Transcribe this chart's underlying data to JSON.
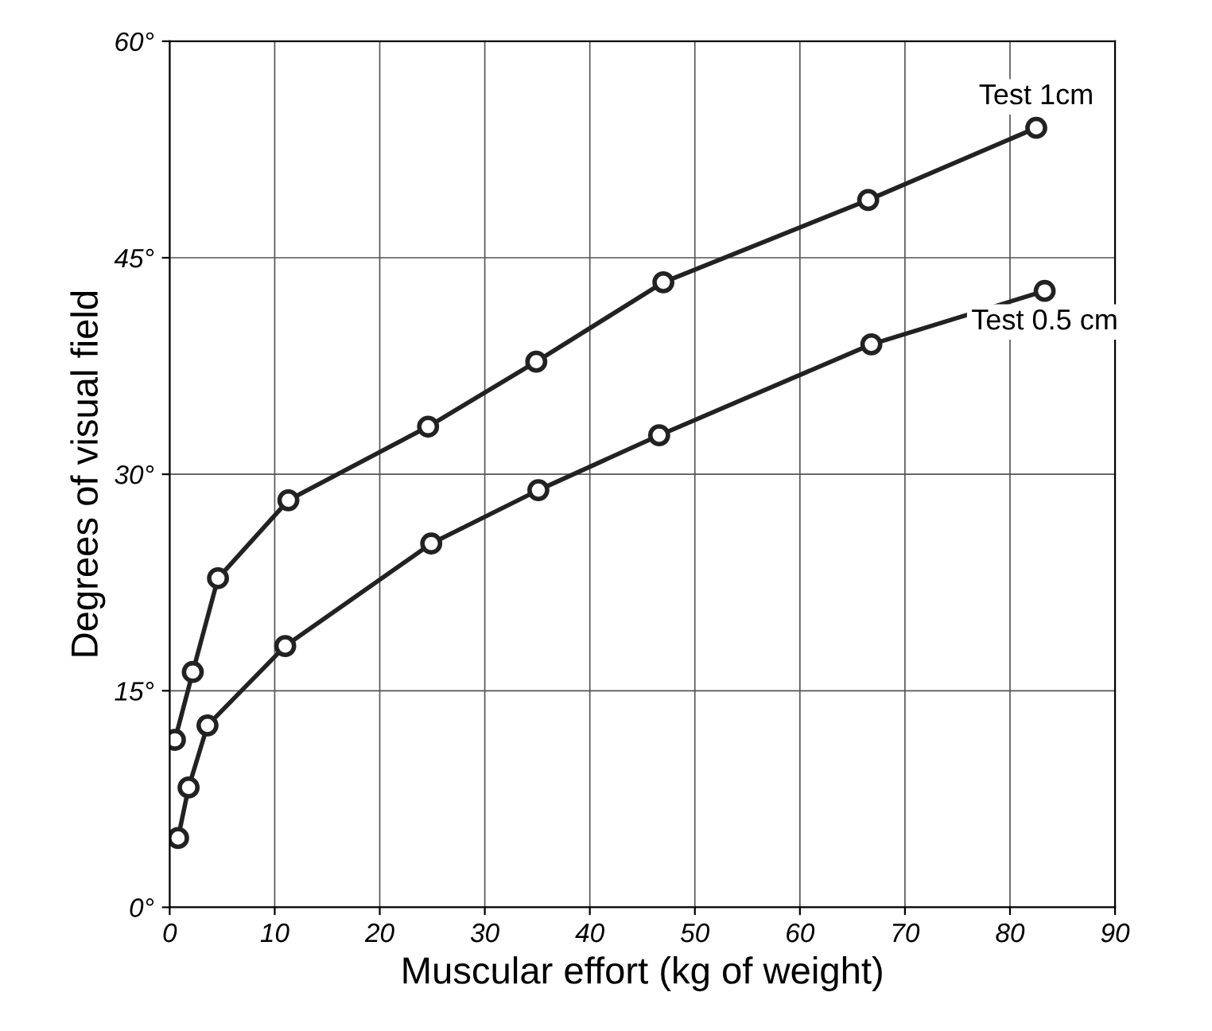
{
  "chart_data": {
    "type": "line",
    "xlabel": "Muscular effort (kg of weight)",
    "ylabel": "Degrees of visual field",
    "series": [
      {
        "name": "Test 1cm",
        "color": "#222222",
        "x": [
          0.5,
          2.2,
          4.6,
          11.3,
          24.6,
          34.9,
          47.0,
          66.5,
          82.5
        ],
        "values": [
          11.6,
          16.3,
          22.8,
          28.2,
          33.3,
          37.8,
          43.3,
          49.0,
          54.0
        ]
      },
      {
        "name": "Test 0.5 cm",
        "color": "#222222",
        "x": [
          0.8,
          1.8,
          3.6,
          11.0,
          24.9,
          35.1,
          46.6,
          66.8,
          83.3
        ],
        "values": [
          4.8,
          8.3,
          12.6,
          18.1,
          25.2,
          28.9,
          32.7,
          39.0,
          42.7
        ]
      }
    ],
    "xlim": [
      0,
      90
    ],
    "xticks": [
      0,
      10,
      20,
      30,
      40,
      50,
      60,
      70,
      80,
      90
    ],
    "ylim": [
      0,
      60
    ],
    "yticks": [
      {
        "value": 0,
        "label": "0°"
      },
      {
        "value": 15,
        "label": "15°"
      },
      {
        "value": 30,
        "label": "30°"
      },
      {
        "value": 45,
        "label": "45°"
      },
      {
        "value": 60,
        "label": "60°"
      }
    ],
    "grid": true,
    "marker": "circle",
    "line_style": "solid"
  }
}
